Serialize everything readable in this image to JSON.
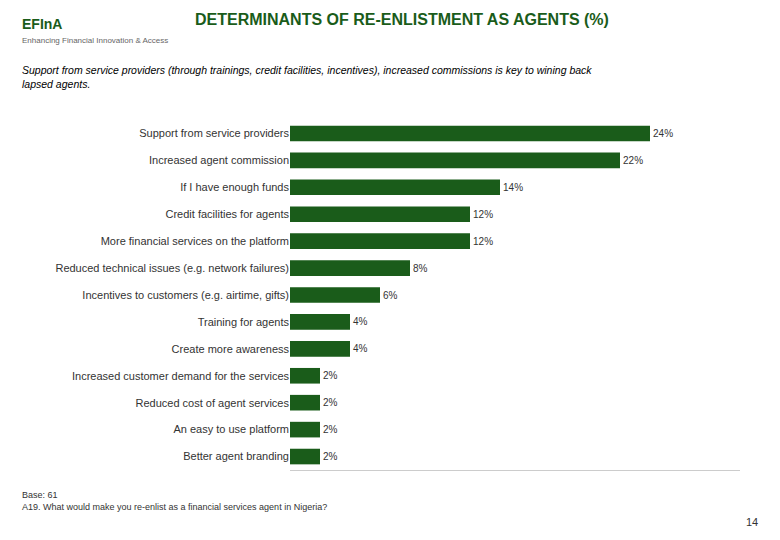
{
  "chart_data": {
    "type": "bar",
    "orientation": "horizontal",
    "title": "DETERMINANTS OF RE-ENLISTMENT AS AGENTS (%)",
    "subtitle": "Support from service providers (through trainings, credit facilities, incentives), increased commissions is key to wining back\nlapsed agents.",
    "categories": [
      "Support from service providers",
      "Increased agent commission",
      "If I have enough funds",
      "Credit facilities for agents",
      "More financial services on the platform",
      "Reduced technical issues (e.g. network failures)",
      "Incentives to customers (e.g. airtime, gifts)",
      "Training for agents",
      "Create more awareness",
      "Increased customer demand for the services",
      "Reduced cost of agent services",
      "An easy to use platform",
      "Better agent branding"
    ],
    "values": [
      24,
      22,
      14,
      12,
      12,
      8,
      6,
      4,
      4,
      2,
      2,
      2,
      2
    ],
    "value_labels": [
      "24%",
      "22%",
      "14%",
      "12%",
      "12%",
      "8%",
      "6%",
      "4%",
      "4%",
      "2%",
      "2%",
      "2%",
      "2%"
    ],
    "data_labels": true,
    "color": "#1a5c1a",
    "xlim": [
      0,
      30
    ],
    "grid": false,
    "tick_labels": "y",
    "annotations": [
      "EFInA",
      "Enhancing Financial Innovation & Access",
      "Base: 61\nA19. What would make you re-enlist as a financial services agent in Nigeria?",
      "14"
    ]
  }
}
